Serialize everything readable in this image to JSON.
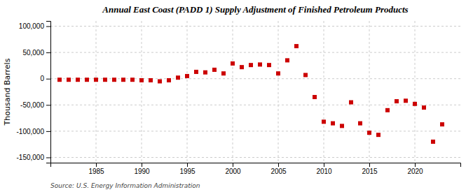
{
  "chart_data": {
    "type": "scatter",
    "title": "Annual East Coast (PADD 1) Supply Adjustment of Finished Petroleum Products",
    "ylabel": "Thousand Barrels",
    "source": "Source: U.S. Energy Information Administration",
    "color": "#cc0000",
    "marker": "square",
    "grid": true,
    "xlim": [
      1980,
      2025
    ],
    "ylim": [
      -160000,
      110000
    ],
    "xticks": [
      1985,
      1990,
      1995,
      2000,
      2005,
      2010,
      2015,
      2020
    ],
    "yticks": [
      {
        "value": -150000,
        "label": "-150,000"
      },
      {
        "value": -100000,
        "label": "-100,000"
      },
      {
        "value": -50000,
        "label": "-50,000"
      },
      0,
      {
        "value": 50000,
        "label": "50,000"
      },
      {
        "value": 100000,
        "label": "100,000"
      }
    ],
    "x": [
      1981,
      1982,
      1983,
      1984,
      1985,
      1986,
      1987,
      1988,
      1989,
      1990,
      1991,
      1992,
      1993,
      1994,
      1995,
      1996,
      1997,
      1998,
      1999,
      2000,
      2001,
      2002,
      2003,
      2004,
      2005,
      2006,
      2007,
      2008,
      2009,
      2010,
      2011,
      2012,
      2013,
      2014,
      2015,
      2016,
      2017,
      2018,
      2019,
      2020,
      2021,
      2022,
      2023
    ],
    "values": [
      -2000,
      -2000,
      -2000,
      -2000,
      -2000,
      -2000,
      -2000,
      -2000,
      -2000,
      -3000,
      -3000,
      -5000,
      -3000,
      2000,
      5000,
      13000,
      12000,
      17000,
      10000,
      29000,
      22000,
      26000,
      27000,
      26000,
      10000,
      35000,
      62000,
      7000,
      -35000,
      -82000,
      -85000,
      -90000,
      -45000,
      -85000,
      -103000,
      -107000,
      -60000,
      -43000,
      -42000,
      -48000,
      -55000,
      -120000,
      -87000
    ]
  }
}
